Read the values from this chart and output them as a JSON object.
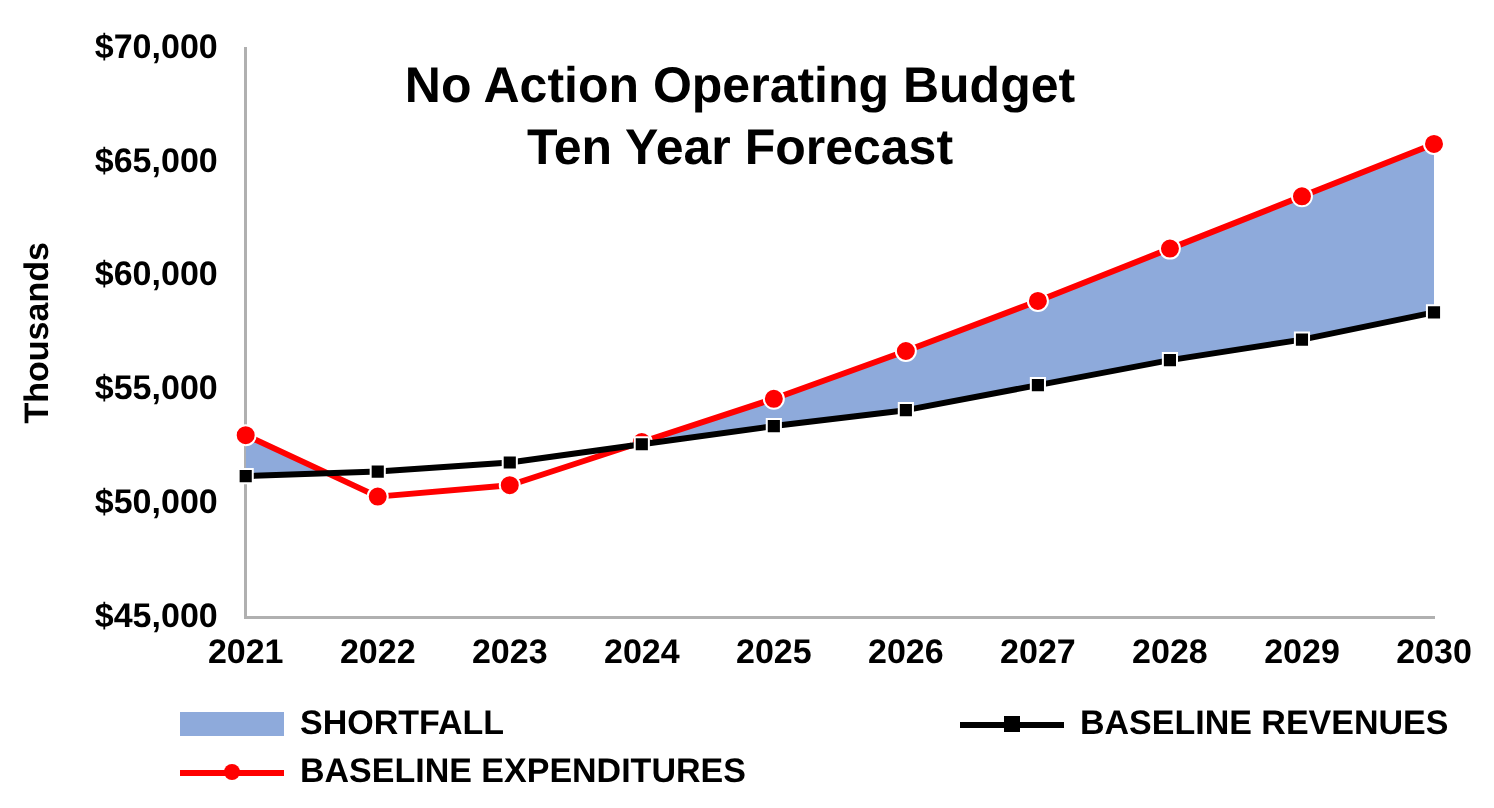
{
  "chart_data": {
    "type": "line",
    "title": "No Action Operating Budget\nTen Year Forecast",
    "ylabel": "Thousands",
    "categories": [
      "2021",
      "2022",
      "2023",
      "2024",
      "2025",
      "2026",
      "2027",
      "2028",
      "2029",
      "2030"
    ],
    "series": [
      {
        "name": "SHORTFALL",
        "type": "line",
        "color": "#8eaadb",
        "marker": "none",
        "values": [
          null,
          null,
          null,
          null,
          null,
          null,
          null,
          null,
          null,
          null
        ],
        "lower": [
          51200,
          51400,
          51800,
          52600,
          53400,
          54100,
          55200,
          56300,
          57200,
          58400
        ],
        "upper": [
          53000,
          50300,
          50800,
          52700,
          54600,
          56700,
          58900,
          61200,
          63500,
          65800
        ]
      },
      {
        "name": "BASELINE REVENUES",
        "type": "line",
        "color": "#000000",
        "marker": "square",
        "values": [
          51200,
          51400,
          51800,
          52600,
          53400,
          54100,
          55200,
          56300,
          57200,
          58400
        ]
      },
      {
        "name": "BASELINE EXPENDITURES",
        "type": "line",
        "color": "#ff0000",
        "marker": "circle",
        "values": [
          53000,
          50300,
          50800,
          52700,
          54600,
          56700,
          58900,
          61200,
          63500,
          65800
        ]
      }
    ],
    "ylim": [
      45000,
      70000
    ],
    "yticks": [
      {
        "value": 45000,
        "label": "$45,000"
      },
      {
        "value": 50000,
        "label": "$50,000"
      },
      {
        "value": 55000,
        "label": "$55,000"
      },
      {
        "value": 60000,
        "label": "$60,000"
      },
      {
        "value": 65000,
        "label": "$65,000"
      },
      {
        "value": 70000,
        "label": "$70,000"
      }
    ],
    "grid": false,
    "legend": "bottom"
  }
}
